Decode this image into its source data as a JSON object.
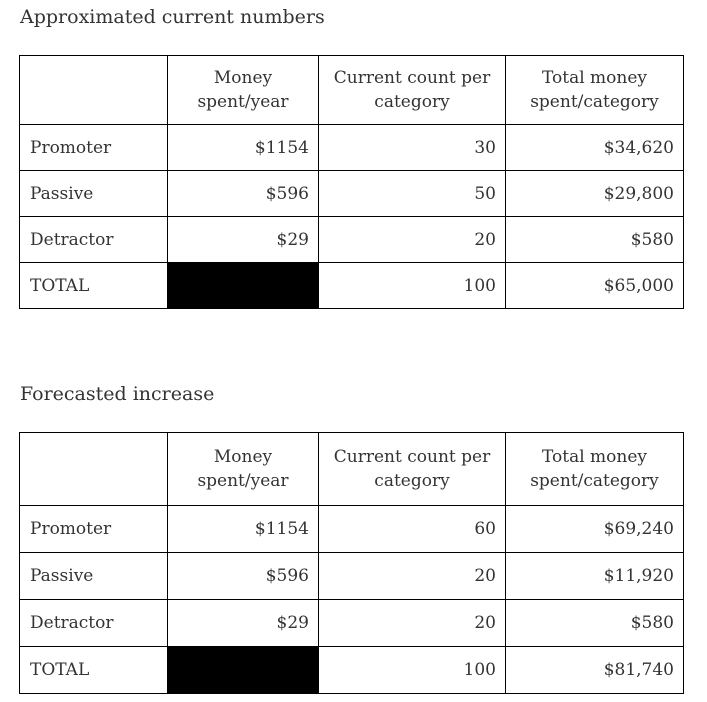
{
  "sections": [
    {
      "title": "Approximated current numbers",
      "headers": [
        "",
        "Money spent/year",
        "Current count per category",
        "Total money spent/category"
      ],
      "rows": [
        {
          "label": "Promoter",
          "money_per_year": "$1154",
          "count": "30",
          "total": "$34,620"
        },
        {
          "label": "Passive",
          "money_per_year": "$596",
          "count": "50",
          "total": "$29,800"
        },
        {
          "label": "Detractor",
          "money_per_year": "$29",
          "count": "20",
          "total": "$580"
        },
        {
          "label": "TOTAL",
          "money_per_year": "",
          "count": "100",
          "total": "$65,000"
        }
      ]
    },
    {
      "title": "Forecasted increase",
      "headers": [
        "",
        "Money spent/year",
        "Current count per category",
        "Total money spent/category"
      ],
      "rows": [
        {
          "label": "Promoter",
          "money_per_year": "$1154",
          "count": "60",
          "total": "$69,240"
        },
        {
          "label": "Passive",
          "money_per_year": "$596",
          "count": "20",
          "total": "$11,920"
        },
        {
          "label": "Detractor",
          "money_per_year": "$29",
          "count": "20",
          "total": "$580"
        },
        {
          "label": "TOTAL",
          "money_per_year": "",
          "count": "100",
          "total": "$81,740"
        }
      ]
    }
  ]
}
